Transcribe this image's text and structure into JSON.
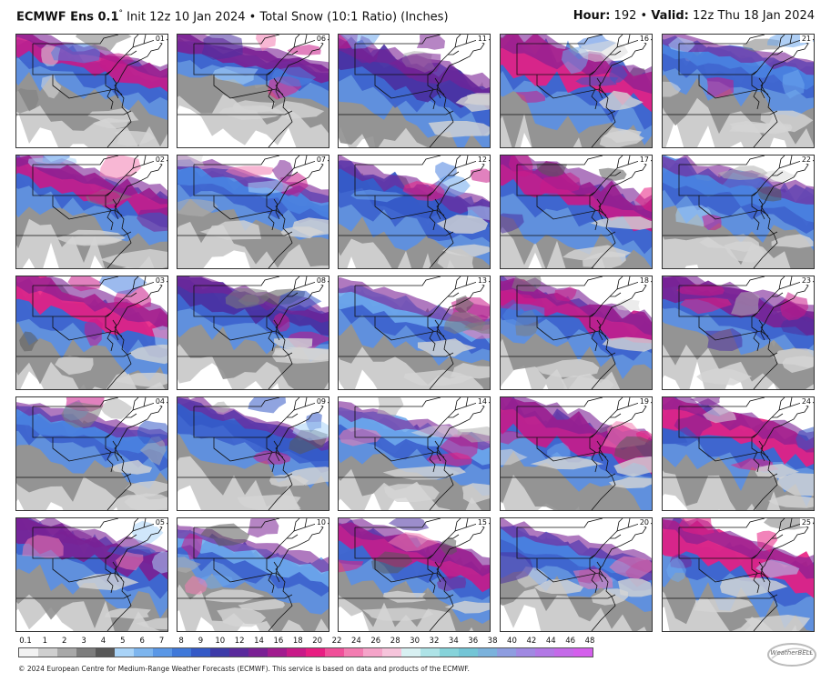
{
  "header": {
    "model": "ECMWF Ens 0.1",
    "degree": "°",
    "init": "Init 12z 10 Jan 2024",
    "separator": "•",
    "product": "Total Snow (10:1 Ratio) (Inches)",
    "hour_label": "Hour:",
    "hour_value": "192",
    "valid_label": "Valid:",
    "valid_value": "12z Thu 18 Jan 2024"
  },
  "members": [
    "01",
    "06",
    "11",
    "16",
    "21",
    "02",
    "07",
    "12",
    "17",
    "22",
    "03",
    "08",
    "13",
    "18",
    "23",
    "04",
    "09",
    "14",
    "19",
    "24",
    "05",
    "10",
    "15",
    "20",
    "25"
  ],
  "legend": {
    "ticks": [
      "0.1",
      "1",
      "2",
      "3",
      "4",
      "5",
      "6",
      "7",
      "8",
      "9",
      "10",
      "12",
      "14",
      "16",
      "18",
      "20",
      "22",
      "24",
      "26",
      "28",
      "30",
      "32",
      "34",
      "36",
      "38",
      "40",
      "42",
      "44",
      "46",
      "48"
    ],
    "colors": [
      "#f2f2f2",
      "#cfcfcf",
      "#a8a8a8",
      "#7d7d7d",
      "#585858",
      "#a9d3f7",
      "#7db5ee",
      "#5a97e6",
      "#3f78d9",
      "#3459c6",
      "#3d3aa8",
      "#5a2a9c",
      "#7a2094",
      "#a11c8f",
      "#c81a88",
      "#e81e82",
      "#f04f99",
      "#f37cb1",
      "#f5a4c9",
      "#f6c4db",
      "#d8f0f2",
      "#aee3e7",
      "#86d3da",
      "#73c5d6",
      "#7bb2dc",
      "#8e9de0",
      "#a089e2",
      "#b278e5",
      "#c46ae8",
      "#d45fec"
    ]
  },
  "copyright": "© 2024 European Centre for Medium-Range Weather Forecasts (ECMWF). This service is based on data and products of the ECMWF.",
  "logo": {
    "text": "WeatherBELL",
    "icon": "weatherbell-logo"
  }
}
